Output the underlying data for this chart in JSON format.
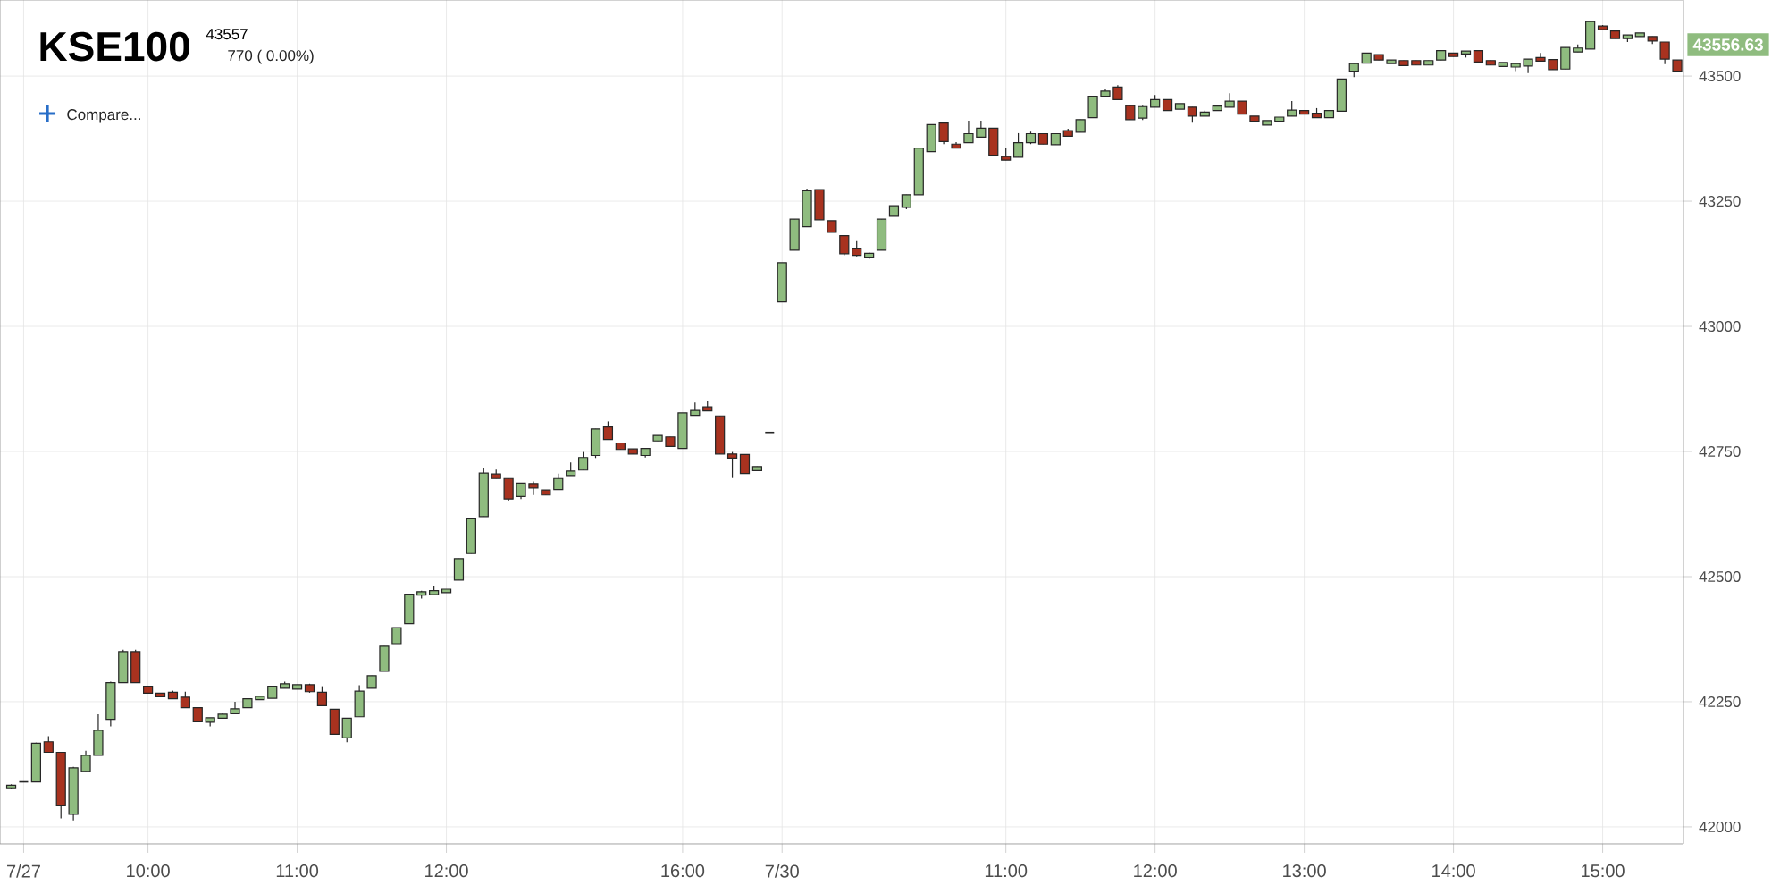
{
  "chart_data": {
    "type": "candlestick",
    "title": "KSE100",
    "subtitle": "43557",
    "annotations": [
      "43556.63",
      "770 ( 0.00%)",
      "Compare..."
    ],
    "categories": [
      null,
      "7/27",
      null,
      null,
      null,
      null,
      null,
      null,
      null,
      null,
      null,
      "10:00",
      null,
      null,
      null,
      null,
      null,
      null,
      null,
      null,
      null,
      null,
      null,
      "11:00",
      null,
      null,
      null,
      null,
      null,
      null,
      null,
      null,
      null,
      null,
      null,
      "12:00",
      null,
      null,
      null,
      null,
      null,
      null,
      null,
      null,
      null,
      null,
      null,
      null,
      null,
      null,
      null,
      null,
      null,
      null,
      "16:00",
      null,
      null,
      null,
      null,
      null,
      null,
      null,
      "7/30",
      null,
      null,
      null,
      null,
      null,
      null,
      null,
      null,
      null,
      null,
      null,
      null,
      null,
      null,
      null,
      null,
      null,
      "11:00",
      null,
      null,
      null,
      null,
      null,
      null,
      null,
      null,
      null,
      null,
      null,
      "12:00",
      null,
      null,
      null,
      null,
      null,
      null,
      null,
      null,
      null,
      null,
      null,
      "13:00",
      null,
      null,
      null,
      null,
      null,
      null,
      null,
      null,
      null,
      null,
      null,
      "14:00",
      null,
      null,
      null,
      null,
      null,
      null,
      null,
      null,
      null,
      null,
      null,
      "15:00",
      null,
      null,
      null,
      null,
      null,
      null
    ],
    "ohlc": [
      [
        42078,
        42085,
        42076,
        42083
      ],
      [
        42090,
        42090,
        42090,
        42090
      ],
      [
        42090,
        42168,
        42090,
        42167
      ],
      [
        42170,
        42181,
        42149,
        42149
      ],
      [
        42149,
        42149,
        42017,
        42042
      ],
      [
        42025,
        42120,
        42013,
        42118
      ],
      [
        42111,
        42152,
        42111,
        42143
      ],
      [
        42143,
        42225,
        42143,
        42193
      ],
      [
        42215,
        42290,
        42201,
        42288
      ],
      [
        42288,
        42354,
        42288,
        42350
      ],
      [
        42350,
        42354,
        42288,
        42288
      ],
      [
        42281,
        42281,
        42267,
        42267
      ],
      [
        42267,
        42267,
        42260,
        42260
      ],
      [
        42269,
        42272,
        42256,
        42256
      ],
      [
        42259,
        42270,
        42238,
        42238
      ],
      [
        42238,
        42238,
        42210,
        42210
      ],
      [
        42209,
        42218,
        42201,
        42218
      ],
      [
        42217,
        42227,
        42216,
        42225
      ],
      [
        42226,
        42250,
        42226,
        42236
      ],
      [
        42238,
        42256,
        42238,
        42256
      ],
      [
        42254,
        42261,
        42254,
        42261
      ],
      [
        42257,
        42281,
        42257,
        42281
      ],
      [
        42277,
        42290,
        42277,
        42286
      ],
      [
        42275,
        42284,
        42275,
        42284
      ],
      [
        42284,
        42286,
        42268,
        42270
      ],
      [
        42269,
        42281,
        42242,
        42242
      ],
      [
        42235,
        42235,
        42185,
        42185
      ],
      [
        42178,
        42217,
        42169,
        42217
      ],
      [
        42220,
        42283,
        42220,
        42271
      ],
      [
        42277,
        42302,
        42277,
        42302
      ],
      [
        42311,
        42361,
        42311,
        42361
      ],
      [
        42366,
        42398,
        42366,
        42398
      ],
      [
        42406,
        42465,
        42406,
        42465
      ],
      [
        42463,
        42472,
        42456,
        42470
      ],
      [
        42464,
        42482,
        42464,
        42472
      ],
      [
        42468,
        42475,
        42468,
        42475
      ],
      [
        42493,
        42536,
        42493,
        42536
      ],
      [
        42546,
        42617,
        42546,
        42617
      ],
      [
        42620,
        42717,
        42620,
        42707
      ],
      [
        42705,
        42714,
        42696,
        42696
      ],
      [
        42696,
        42696,
        42652,
        42655
      ],
      [
        42660,
        42687,
        42655,
        42687
      ],
      [
        42686,
        42690,
        42663,
        42677
      ],
      [
        42673,
        42673,
        42663,
        42663
      ],
      [
        42674,
        42706,
        42674,
        42696
      ],
      [
        42702,
        42728,
        42702,
        42711
      ],
      [
        42713,
        42749,
        42713,
        42738
      ],
      [
        42742,
        42795,
        42737,
        42795
      ],
      [
        42799,
        42810,
        42774,
        42774
      ],
      [
        42767,
        42767,
        42754,
        42754
      ],
      [
        42755,
        42755,
        42745,
        42745
      ],
      [
        42742,
        42756,
        42738,
        42756
      ],
      [
        42771,
        42782,
        42771,
        42782
      ],
      [
        42779,
        42779,
        42760,
        42760
      ],
      [
        42756,
        42827,
        42756,
        42827
      ],
      [
        42822,
        42848,
        42822,
        42832
      ],
      [
        42839,
        42850,
        42831,
        42831
      ],
      [
        42821,
        42821,
        42745,
        42745
      ],
      [
        42745,
        42749,
        42697,
        42737
      ],
      [
        42744,
        42744,
        42706,
        42706
      ],
      [
        42712,
        42720,
        42712,
        42720
      ],
      [
        42788,
        42788,
        42788,
        42788
      ],
      [
        43049,
        43127,
        43049,
        43127
      ],
      [
        43152,
        43214,
        43152,
        43214
      ],
      [
        43199,
        43275,
        43199,
        43271
      ],
      [
        43273,
        43273,
        43213,
        43213
      ],
      [
        43211,
        43211,
        43188,
        43188
      ],
      [
        43181,
        43181,
        43142,
        43145
      ],
      [
        43156,
        43170,
        43140,
        43142
      ],
      [
        43137,
        43148,
        43134,
        43146
      ],
      [
        43152,
        43214,
        43152,
        43214
      ],
      [
        43220,
        43241,
        43220,
        43241
      ],
      [
        43238,
        43263,
        43234,
        43263
      ],
      [
        43263,
        43356,
        43263,
        43356
      ],
      [
        43349,
        43403,
        43349,
        43403
      ],
      [
        43406,
        43406,
        43364,
        43369
      ],
      [
        43364,
        43368,
        43356,
        43356
      ],
      [
        43367,
        43411,
        43367,
        43385
      ],
      [
        43378,
        43411,
        43378,
        43396
      ],
      [
        43396,
        43396,
        43342,
        43342
      ],
      [
        43339,
        43356,
        43332,
        43332
      ],
      [
        43338,
        43386,
        43338,
        43367
      ],
      [
        43367,
        43389,
        43364,
        43385
      ],
      [
        43385,
        43385,
        43364,
        43364
      ],
      [
        43363,
        43385,
        43363,
        43385
      ],
      [
        43391,
        43395,
        43380,
        43380
      ],
      [
        43388,
        43413,
        43388,
        43413
      ],
      [
        43417,
        43460,
        43417,
        43460
      ],
      [
        43460,
        43474,
        43460,
        43470
      ],
      [
        43478,
        43482,
        43453,
        43453
      ],
      [
        43441,
        43441,
        43413,
        43413
      ],
      [
        43416,
        43441,
        43412,
        43439
      ],
      [
        43438,
        43462,
        43438,
        43453
      ],
      [
        43453,
        43453,
        43431,
        43431
      ],
      [
        43434,
        43445,
        43434,
        43445
      ],
      [
        43438,
        43438,
        43407,
        43420
      ],
      [
        43420,
        43431,
        43420,
        43428
      ],
      [
        43431,
        43440,
        43431,
        43440
      ],
      [
        43438,
        43466,
        43438,
        43450
      ],
      [
        43450,
        43450,
        43424,
        43424
      ],
      [
        43420,
        43420,
        43410,
        43410
      ],
      [
        43402,
        43411,
        43402,
        43411
      ],
      [
        43410,
        43418,
        43410,
        43418
      ],
      [
        43420,
        43450,
        43420,
        43432
      ],
      [
        43431,
        43431,
        43424,
        43424
      ],
      [
        43426,
        43436,
        43417,
        43417
      ],
      [
        43417,
        43431,
        43417,
        43431
      ],
      [
        43430,
        43494,
        43430,
        43494
      ],
      [
        43510,
        43525,
        43498,
        43525
      ],
      [
        43526,
        43546,
        43526,
        43546
      ],
      [
        43543,
        43543,
        43532,
        43532
      ],
      [
        43525,
        43532,
        43525,
        43532
      ],
      [
        43531,
        43531,
        43521,
        43521
      ],
      [
        43531,
        43531,
        43522,
        43522
      ],
      [
        43522,
        43531,
        43522,
        43531
      ],
      [
        43532,
        43551,
        43532,
        43551
      ],
      [
        43546,
        43546,
        43539,
        43539
      ],
      [
        43544,
        43550,
        43537,
        43550
      ],
      [
        43551,
        43551,
        43528,
        43528
      ],
      [
        43531,
        43531,
        43522,
        43522
      ],
      [
        43519,
        43527,
        43519,
        43527
      ],
      [
        43518,
        43525,
        43510,
        43525
      ],
      [
        43520,
        43534,
        43506,
        43534
      ],
      [
        43537,
        43546,
        43530,
        43530
      ],
      [
        43533,
        43533,
        43513,
        43513
      ],
      [
        43514,
        43557,
        43514,
        43557
      ],
      [
        43548,
        43563,
        43548,
        43556
      ],
      [
        43554,
        43609,
        43554,
        43609
      ],
      [
        43600,
        43602,
        43593,
        43593
      ],
      [
        43590,
        43590,
        43575,
        43575
      ],
      [
        43575,
        43582,
        43568,
        43582
      ],
      [
        43579,
        43586,
        43579,
        43586
      ],
      [
        43579,
        43579,
        43564,
        43570
      ],
      [
        43568,
        43568,
        43524,
        43534
      ],
      [
        43532,
        43532,
        43510,
        43510
      ]
    ],
    "colors": [
      "#8fbc7f",
      "#262626",
      "#8fbc7f",
      "#a8321f",
      "#a8321f",
      "#8fbc7f",
      "#8fbc7f",
      "#8fbc7f",
      "#8fbc7f",
      "#8fbc7f",
      "#a8321f",
      "#a8321f",
      "#a8321f",
      "#a8321f",
      "#a8321f",
      "#a8321f",
      "#8fbc7f",
      "#8fbc7f",
      "#8fbc7f",
      "#8fbc7f",
      "#8fbc7f",
      "#8fbc7f",
      "#8fbc7f",
      "#8fbc7f",
      "#a8321f",
      "#a8321f",
      "#a8321f",
      "#8fbc7f",
      "#8fbc7f",
      "#8fbc7f",
      "#8fbc7f",
      "#8fbc7f",
      "#8fbc7f",
      "#8fbc7f",
      "#8fbc7f",
      "#8fbc7f",
      "#8fbc7f",
      "#8fbc7f",
      "#8fbc7f",
      "#a8321f",
      "#a8321f",
      "#8fbc7f",
      "#a8321f",
      "#a8321f",
      "#8fbc7f",
      "#8fbc7f",
      "#8fbc7f",
      "#8fbc7f",
      "#a8321f",
      "#a8321f",
      "#a8321f",
      "#8fbc7f",
      "#8fbc7f",
      "#a8321f",
      "#8fbc7f",
      "#8fbc7f",
      "#a8321f",
      "#a8321f",
      "#a8321f",
      "#a8321f",
      "#8fbc7f",
      "#262626",
      "#8fbc7f",
      "#8fbc7f",
      "#8fbc7f",
      "#a8321f",
      "#a8321f",
      "#a8321f",
      "#a8321f",
      "#8fbc7f",
      "#8fbc7f",
      "#8fbc7f",
      "#8fbc7f",
      "#8fbc7f",
      "#8fbc7f",
      "#a8321f",
      "#a8321f",
      "#8fbc7f",
      "#8fbc7f",
      "#a8321f",
      "#a8321f",
      "#8fbc7f",
      "#8fbc7f",
      "#a8321f",
      "#8fbc7f",
      "#a8321f",
      "#8fbc7f",
      "#8fbc7f",
      "#8fbc7f",
      "#a8321f",
      "#a8321f",
      "#8fbc7f",
      "#8fbc7f",
      "#a8321f",
      "#8fbc7f",
      "#a8321f",
      "#8fbc7f",
      "#8fbc7f",
      "#8fbc7f",
      "#a8321f",
      "#a8321f",
      "#8fbc7f",
      "#8fbc7f",
      "#8fbc7f",
      "#a8321f",
      "#a8321f",
      "#8fbc7f",
      "#8fbc7f",
      "#8fbc7f",
      "#8fbc7f",
      "#a8321f",
      "#8fbc7f",
      "#a8321f",
      "#a8321f",
      "#8fbc7f",
      "#8fbc7f",
      "#a8321f",
      "#8fbc7f",
      "#a8321f",
      "#a8321f",
      "#8fbc7f",
      "#8fbc7f",
      "#8fbc7f",
      "#a8321f",
      "#a8321f",
      "#8fbc7f",
      "#8fbc7f",
      "#8fbc7f",
      "#a8321f",
      "#a8321f",
      "#8fbc7f",
      "#8fbc7f",
      "#a8321f",
      "#a8321f",
      "#a8321f"
    ],
    "ylim": [
      41966,
      43652
    ],
    "yticks": [
      42000,
      42250,
      42500,
      42750,
      43000,
      43250,
      43500
    ],
    "grid": true
  }
}
